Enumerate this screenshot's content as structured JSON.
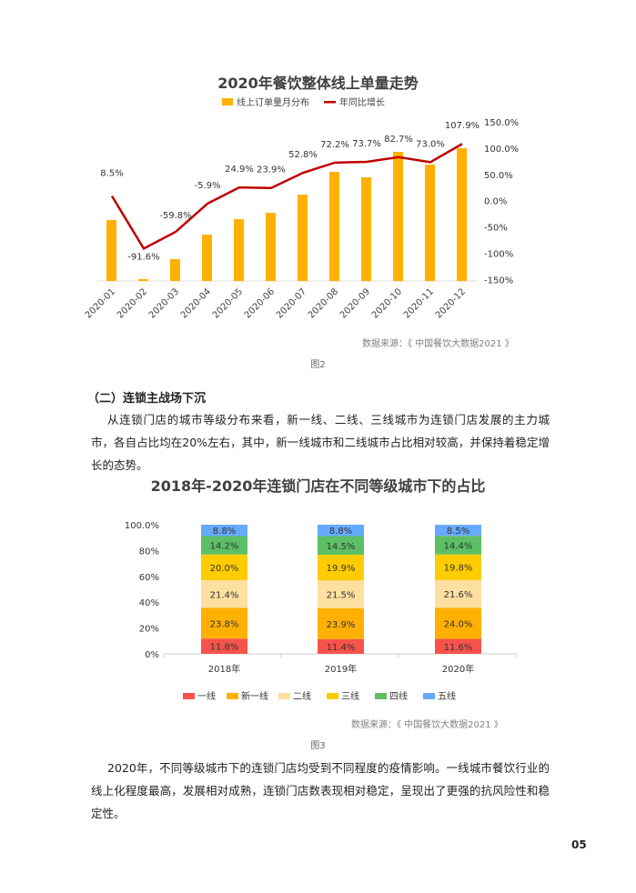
{
  "chart_data": [
    {
      "type": "bar+line",
      "title": "2020年餐饮整体线上单量走势",
      "legend": [
        "线上订单量月分布",
        "年同比增长"
      ],
      "categories": [
        "2020-01",
        "2020-02",
        "2020-03",
        "2020-04",
        "2020-05",
        "2020-06",
        "2020-07",
        "2020-08",
        "2020-09",
        "2020-10",
        "2020-11",
        "2020-12"
      ],
      "bar_values_relative": [
        67,
        2,
        24,
        51,
        68,
        75,
        95,
        120,
        114,
        142,
        128,
        146
      ],
      "line_values": [
        8.5,
        -91.6,
        -59.8,
        -5.9,
        24.9,
        23.9,
        52.8,
        72.2,
        73.7,
        82.7,
        73.0,
        107.9
      ],
      "line_labels": [
        "8.5%",
        "-91.6%",
        "-59.8%",
        "-5.9%",
        "24.9%",
        "23.9%",
        "52.8%",
        "72.2%",
        "73.7%",
        "82.7%",
        "73.0%",
        "107.9%"
      ],
      "right_axis_ticks": [
        "150.0%",
        "100.0%",
        "50.0%",
        "0.0%",
        "-50%",
        "-100%",
        "-150%"
      ],
      "right_axis_range": [
        -150,
        150
      ],
      "colors": {
        "bar": "#FFB000",
        "line": "#C00000"
      },
      "source": "数据来源：《 中国餐饮大数据2021 》"
    },
    {
      "type": "stacked-bar",
      "title": "2018年-2020年连锁门店在不同等级城市下的占比",
      "categories": [
        "2018年",
        "2019年",
        "2020年"
      ],
      "y_ticks": [
        "100.0%",
        "80%",
        "60%",
        "40%",
        "20%",
        "0%"
      ],
      "ylim": [
        0,
        100
      ],
      "series": [
        {
          "name": "一线",
          "color": "#F8534A",
          "values": [
            11.8,
            11.4,
            11.6
          ]
        },
        {
          "name": "新一线",
          "color": "#FFB000",
          "values": [
            23.8,
            23.9,
            24.0
          ]
        },
        {
          "name": "二线",
          "color": "#FDDFA0",
          "values": [
            21.4,
            21.5,
            21.6
          ]
        },
        {
          "name": "三线",
          "color": "#FFCC00",
          "values": [
            20.0,
            19.9,
            19.8
          ]
        },
        {
          "name": "四线",
          "color": "#5CBF65",
          "values": [
            14.2,
            14.5,
            14.4
          ]
        },
        {
          "name": "五线",
          "color": "#65AAFF",
          "values": [
            8.8,
            8.8,
            8.5
          ]
        }
      ],
      "source": "数据来源：《 中国餐饮大数据2021 》"
    }
  ],
  "fig2": "图2",
  "fig3": "图3",
  "section_heading": "（二）连锁主战场下沉",
  "para1": "从连锁门店的城市等级分布来看，新一线、二线、三线城市为连锁门店发展的主力城市，各自占比均在20%左右，其中，新一线城市和二线城市占比相对较高，并保持着稳定增长的态势。",
  "para2": "2020年，不同等级城市下的连锁门店均受到不同程度的疫情影响。一线城市餐饮行业的线上化程度最高，发展相对成熟，连锁门店数表现相对稳定，呈现出了更强的抗风险性和稳定性。",
  "page_number": "05"
}
